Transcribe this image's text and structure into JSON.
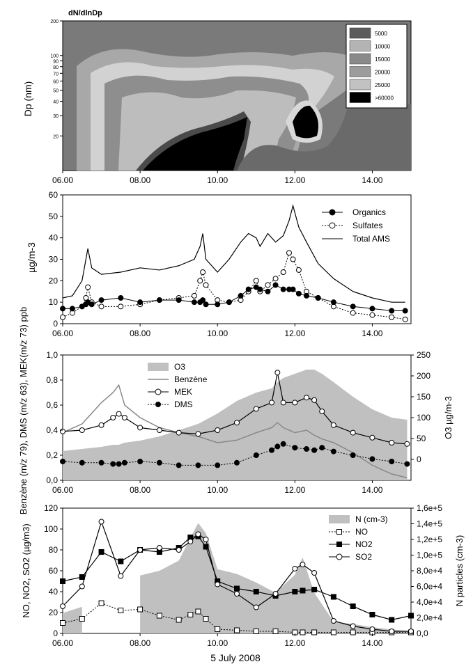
{
  "footer": {
    "date_label": "5 July 2008"
  },
  "chart_data": [
    {
      "type": "heatmap",
      "title": "dN/dlnDp",
      "ylabel": "Dp (nm)",
      "y_scale": "log",
      "ylim": [
        10,
        200
      ],
      "y_ticks": [
        "200",
        "100",
        "90",
        "80",
        "70",
        "60",
        "50",
        "40",
        "30",
        "20"
      ],
      "x_ticks": [
        "06.00",
        "08.00",
        "10.00",
        "12.00",
        "14.00"
      ],
      "legend": {
        "placement": "top-right",
        "entries": [
          {
            "label": "5000",
            "color": "#5c5c5c"
          },
          {
            "label": "10000",
            "color": "#b4b4b4"
          },
          {
            "label": "15000",
            "color": "#8a8a8a"
          },
          {
            "label": "20000",
            "color": "#9c9c9c"
          },
          {
            "label": "25000",
            "color": "#c2c2c2"
          },
          {
            "label": ">60000",
            "color": "#000000"
          }
        ]
      }
    },
    {
      "type": "line",
      "ylabel": "µg/m-3",
      "ylim": [
        0,
        60
      ],
      "y_ticks": [
        "0",
        "10",
        "20",
        "30",
        "40",
        "50",
        "60"
      ],
      "x_ticks": [
        "06.00",
        "08.00",
        "10.00",
        "12.00",
        "14.00"
      ],
      "xlim_hours": [
        6,
        15
      ],
      "legend_placement": "top-right",
      "x": [
        6.0,
        6.25,
        6.5,
        6.6,
        6.65,
        6.75,
        7.0,
        7.5,
        8.0,
        8.5,
        9.0,
        9.4,
        9.55,
        9.62,
        9.7,
        10.0,
        10.3,
        10.6,
        10.8,
        11.0,
        11.1,
        11.3,
        11.5,
        11.7,
        11.85,
        11.95,
        12.1,
        12.3,
        12.6,
        13.0,
        13.5,
        14.0,
        14.5,
        14.85
      ],
      "series": [
        {
          "name": "Organics",
          "marker": "filled-circle",
          "values": [
            7,
            7,
            8,
            9,
            10,
            9,
            11,
            12,
            10,
            11,
            11,
            10,
            10,
            11,
            9,
            9,
            10,
            13,
            16,
            17,
            16,
            15,
            18,
            16,
            16,
            16,
            14,
            13,
            12,
            10,
            8,
            7,
            6,
            6
          ]
        },
        {
          "name": "Sulfates",
          "marker": "open-circle",
          "values": [
            3,
            5,
            8,
            12,
            17,
            10,
            8,
            8,
            9,
            11,
            12,
            13,
            20,
            24,
            18,
            11,
            10,
            11,
            15,
            20,
            15,
            18,
            21,
            24,
            33,
            30,
            25,
            15,
            12,
            8,
            5,
            4,
            3,
            2
          ]
        },
        {
          "name": "Total AMS",
          "marker": "line",
          "values": [
            12,
            13,
            20,
            30,
            35,
            26,
            23,
            24,
            26,
            25,
            27,
            30,
            36,
            42,
            30,
            24,
            30,
            38,
            42,
            40,
            36,
            42,
            38,
            41,
            48,
            55,
            45,
            38,
            28,
            21,
            15,
            12,
            10,
            10
          ]
        }
      ]
    },
    {
      "type": "line",
      "ylabel_left": "Benzène (m/z 79), DMS (m/z 63), MEK(m/z 73) ppb",
      "ylabel_right": "O3 µg/m-3",
      "ylim_left": [
        0,
        1.0
      ],
      "ylim_right": [
        -50,
        250
      ],
      "y_ticks_left": [
        "0,0",
        "0,2",
        "0,4",
        "0,6",
        "0,8",
        "1,0"
      ],
      "y_ticks_right": [
        "0",
        "50",
        "100",
        "150",
        "200",
        "250"
      ],
      "x_ticks": [
        "06.00",
        "08.00",
        "10.00",
        "12.00",
        "14.00"
      ],
      "xlim_hours": [
        6,
        15
      ],
      "legend_placement": "top-center",
      "x": [
        6.0,
        6.5,
        7.0,
        7.3,
        7.45,
        7.6,
        8.0,
        8.5,
        9.0,
        9.5,
        10.0,
        10.5,
        11.0,
        11.4,
        11.55,
        11.7,
        12.0,
        12.3,
        12.5,
        12.7,
        13.0,
        13.5,
        14.0,
        14.5,
        14.9
      ],
      "series": [
        {
          "name": "O3",
          "axis": "right",
          "kind": "area",
          "values": [
            20,
            25,
            30,
            35,
            35,
            40,
            45,
            55,
            70,
            85,
            110,
            140,
            160,
            170,
            185,
            195,
            205,
            215,
            215,
            205,
            185,
            150,
            120,
            100,
            95
          ]
        },
        {
          "name": "Benzène",
          "axis": "left",
          "kind": "line",
          "values": [
            0.38,
            0.45,
            0.62,
            0.7,
            0.76,
            0.6,
            0.5,
            0.42,
            0.38,
            0.35,
            0.3,
            0.32,
            0.38,
            0.42,
            0.46,
            0.42,
            0.38,
            0.4,
            0.36,
            0.33,
            0.3,
            0.22,
            0.12,
            0.05,
            0.02
          ]
        },
        {
          "name": "MEK",
          "axis": "left",
          "kind": "line-open-circle",
          "values": [
            0.39,
            0.4,
            0.44,
            0.5,
            0.53,
            0.5,
            0.42,
            0.4,
            0.38,
            0.37,
            0.4,
            0.46,
            0.57,
            0.62,
            0.86,
            0.62,
            0.62,
            0.66,
            0.64,
            0.55,
            0.44,
            0.38,
            0.34,
            0.3,
            0.29
          ]
        },
        {
          "name": "DMS",
          "axis": "left",
          "kind": "dotted-filled-circle",
          "values": [
            0.15,
            0.14,
            0.14,
            0.13,
            0.13,
            0.14,
            0.15,
            0.14,
            0.12,
            0.12,
            0.12,
            0.14,
            0.2,
            0.24,
            0.27,
            0.29,
            0.26,
            0.25,
            0.24,
            0.26,
            0.23,
            0.2,
            0.17,
            0.15,
            0.13
          ]
        }
      ]
    },
    {
      "type": "line",
      "ylabel_left": "NO, NO2, SO2 (µg/m3)",
      "ylabel_right": "N particles (cm-3)",
      "ylim_left": [
        0,
        120
      ],
      "ylim_right": [
        0,
        160000
      ],
      "y_ticks_left": [
        "0",
        "20",
        "40",
        "60",
        "80",
        "100",
        "120"
      ],
      "y_ticks_right": [
        "0,0",
        "2,0e+4",
        "4,0e+4",
        "6,0e+4",
        "8,0e+4",
        "1,0e+5",
        "1,2e+5",
        "1,4e+5",
        "1,6e+5"
      ],
      "x_ticks": [
        "06.00",
        "08.00",
        "10.00",
        "12.00",
        "14.00"
      ],
      "xlim_hours": [
        6,
        15
      ],
      "legend_placement": "top-right",
      "x": [
        6.0,
        6.5,
        7.0,
        7.5,
        8.0,
        8.5,
        9.0,
        9.3,
        9.5,
        9.7,
        10.0,
        10.5,
        11.0,
        11.5,
        12.0,
        12.2,
        12.5,
        13.0,
        13.5,
        14.0,
        14.5,
        15.0
      ],
      "series": [
        {
          "name": "N (cm-3)",
          "axis": "right",
          "kind": "area",
          "values": [
            26000,
            34000,
            0,
            0,
            74000,
            80000,
            93000,
            122000,
            141000,
            128000,
            82000,
            76000,
            65000,
            52000,
            75000,
            97000,
            52000,
            15000,
            12000,
            8000,
            5000,
            3000
          ]
        },
        {
          "name": "NO",
          "axis": "left",
          "kind": "dotted-open-square",
          "values": [
            10,
            14,
            29,
            22,
            23,
            17,
            13,
            18,
            21,
            14,
            4,
            3,
            2,
            2,
            1,
            1,
            1,
            1,
            1,
            1,
            1,
            1
          ]
        },
        {
          "name": "NO2",
          "axis": "left",
          "kind": "line-filled-square",
          "values": [
            50,
            54,
            78,
            69,
            80,
            78,
            82,
            92,
            93,
            83,
            50,
            43,
            40,
            36,
            40,
            41,
            42,
            35,
            26,
            18,
            13,
            17
          ]
        },
        {
          "name": "SO2",
          "axis": "left",
          "kind": "line-open-circle",
          "values": [
            26,
            45,
            107,
            55,
            80,
            82,
            80,
            88,
            95,
            90,
            47,
            38,
            25,
            38,
            62,
            66,
            58,
            12,
            7,
            4,
            2,
            2
          ]
        }
      ]
    }
  ]
}
